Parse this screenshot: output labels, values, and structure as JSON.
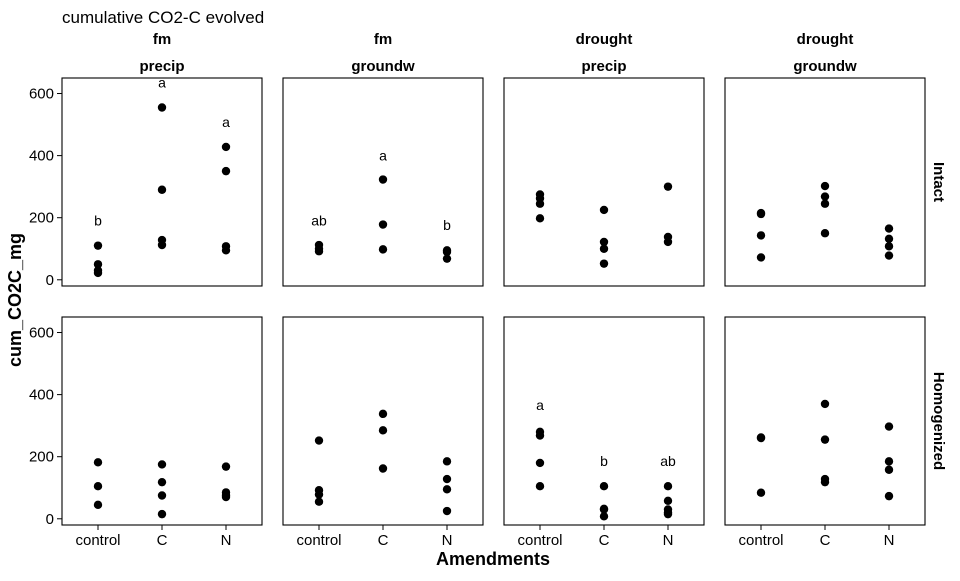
{
  "chart_data": {
    "type": "scatter",
    "title": "cumulative CO2-C evolved",
    "xlabel": "Amendments",
    "ylabel": "cum_CO2C_mg",
    "categories": [
      "control",
      "C",
      "N"
    ],
    "ylim": [
      -20,
      650
    ],
    "yticks": [
      0,
      200,
      400,
      600
    ],
    "grid": false,
    "legend": "none",
    "point_color": "#000000",
    "columns": [
      {
        "top": "fm",
        "bottom": "precip"
      },
      {
        "top": "fm",
        "bottom": "groundw"
      },
      {
        "top": "drought",
        "bottom": "precip"
      },
      {
        "top": "drought",
        "bottom": "groundw"
      }
    ],
    "rows": [
      "Intact",
      "Homogenized"
    ],
    "panels": [
      {
        "row": 0,
        "col": 0,
        "points": {
          "control": [
            110,
            50,
            30,
            22
          ],
          "C": [
            555,
            290,
            128,
            112
          ],
          "N": [
            428,
            350,
            108,
            95
          ]
        },
        "labels": {
          "control": "b",
          "C": "a",
          "N": "a"
        },
        "label_y": {
          "control": 175,
          "C": 620,
          "N": 492
        }
      },
      {
        "row": 0,
        "col": 1,
        "points": {
          "control": [
            112,
            100,
            92
          ],
          "C": [
            323,
            178,
            98
          ],
          "N": [
            95,
            90,
            68
          ]
        },
        "labels": {
          "control": "ab",
          "C": "a",
          "N": "b"
        },
        "label_y": {
          "control": 175,
          "C": 385,
          "N": 160
        }
      },
      {
        "row": 0,
        "col": 2,
        "points": {
          "control": [
            275,
            262,
            245,
            198
          ],
          "C": [
            225,
            122,
            100,
            52
          ],
          "N": [
            300,
            138,
            122
          ]
        },
        "labels": {},
        "label_y": {}
      },
      {
        "row": 0,
        "col": 3,
        "points": {
          "control": [
            215,
            212,
            143,
            72
          ],
          "C": [
            302,
            268,
            245,
            150
          ],
          "N": [
            165,
            132,
            108,
            78
          ]
        },
        "labels": {},
        "label_y": {}
      },
      {
        "row": 1,
        "col": 0,
        "points": {
          "control": [
            182,
            105,
            45
          ],
          "C": [
            175,
            118,
            75,
            15
          ],
          "N": [
            168,
            85,
            75,
            70
          ]
        },
        "labels": {},
        "label_y": {}
      },
      {
        "row": 1,
        "col": 1,
        "points": {
          "control": [
            252,
            92,
            78,
            55
          ],
          "C": [
            338,
            285,
            162
          ],
          "N": [
            185,
            128,
            95,
            25
          ]
        },
        "labels": {},
        "label_y": {}
      },
      {
        "row": 1,
        "col": 2,
        "points": {
          "control": [
            280,
            268,
            180,
            105
          ],
          "C": [
            105,
            32,
            30,
            8
          ],
          "N": [
            105,
            58,
            30,
            20,
            15
          ]
        },
        "labels": {
          "control": "a",
          "C": "b",
          "N": "ab"
        },
        "label_y": {
          "control": 350,
          "C": 170,
          "N": 170
        }
      },
      {
        "row": 1,
        "col": 3,
        "points": {
          "control": [
            262,
            260,
            84
          ],
          "C": [
            370,
            255,
            128,
            118
          ],
          "N": [
            297,
            185,
            158,
            73
          ]
        },
        "labels": {},
        "label_y": {}
      }
    ]
  }
}
